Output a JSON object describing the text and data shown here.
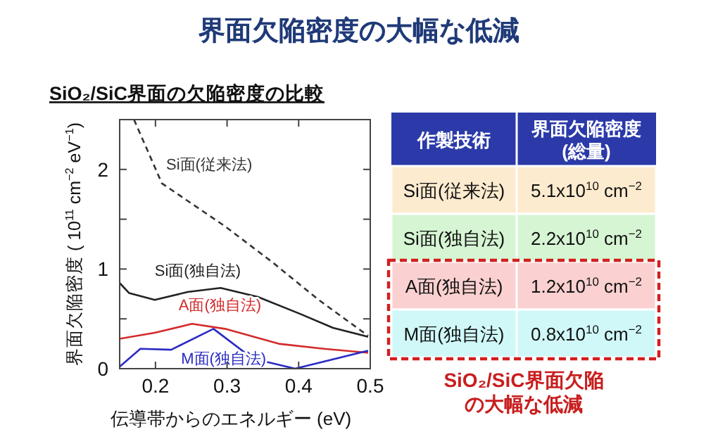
{
  "chart_data": [
    {
      "type": "line",
      "title": "界面欠陥密度の大幅な低減",
      "subtitle": "SiO₂/SiC界面の欠陥密度の比較",
      "xlabel": "伝導帯からのエネルギー (eV)",
      "ylabel": "界面欠陥密度 ( 10$^{11}$ cm$^{−2}$ eV$^{−1}$)",
      "xlim": [
        0.15,
        0.5
      ],
      "ylim": [
        0,
        2.5
      ],
      "xticks": [
        0.2,
        0.3,
        0.4,
        0.5
      ],
      "yticks": [
        0,
        {
          "value": 0.5,
          "label": null
        },
        1,
        {
          "value": 1.5,
          "label": null
        },
        2,
        {
          "value": 2.5,
          "label": null
        }
      ],
      "grid": false,
      "series": [
        {
          "name": "Si面(従来法)",
          "color": "#333333",
          "line_style": "dashed",
          "x": [
            0.17,
            0.209,
            0.297,
            0.363,
            0.428,
            0.497
          ],
          "values": [
            2.5,
            1.86,
            1.43,
            1.07,
            0.69,
            0.33
          ]
        },
        {
          "name": "Si面(独自法)",
          "color": "#222222",
          "line_style": "solid",
          "x": [
            0.15,
            0.163,
            0.199,
            0.245,
            0.291,
            0.343,
            0.402,
            0.448,
            0.497
          ],
          "values": [
            0.86,
            0.76,
            0.69,
            0.77,
            0.81,
            0.72,
            0.55,
            0.41,
            0.32
          ]
        },
        {
          "name": "A面(独自法)",
          "color": "#d42a2a",
          "line_style": "solid",
          "x": [
            0.15,
            0.199,
            0.251,
            0.297,
            0.372,
            0.435,
            0.497
          ],
          "values": [
            0.3,
            0.36,
            0.45,
            0.4,
            0.25,
            0.2,
            0.16
          ]
        },
        {
          "name": "M面(独自法)",
          "color": "#2a2ac4",
          "line_style": "solid",
          "x": [
            0.15,
            0.179,
            0.222,
            0.281,
            0.336,
            0.395,
            0.497
          ],
          "values": [
            0.02,
            0.2,
            0.19,
            0.4,
            0.1,
            0,
            0.18
          ]
        }
      ]
    },
    {
      "type": "other",
      "xlabel": "作製技術",
      "categories": [
        "Si面(従来法)",
        "Si面(独自法)",
        "A面(独自法)",
        "M面(独自法)"
      ],
      "series": [
        {
          "name": "界面欠陥密度 (総量)",
          "values": [
            5.1,
            2.2,
            1.2,
            0.8
          ],
          "value_labels": [
            "5.1x10$^{10}$ cm$^{−2}$",
            "2.2x10$^{10}$ cm$^{−2}$",
            "1.2x10$^{10}$ cm$^{−2}$",
            "0.8x10$^{10}$ cm$^{−2}$"
          ],
          "colors": [
            "#fdebcf",
            "#d6f5d3",
            "#fbd0d0",
            "#d0f8f8"
          ]
        }
      ],
      "annotations": [
        "SiO₂/SiC界面欠陥",
        "の大幅な低減"
      ]
    }
  ]
}
